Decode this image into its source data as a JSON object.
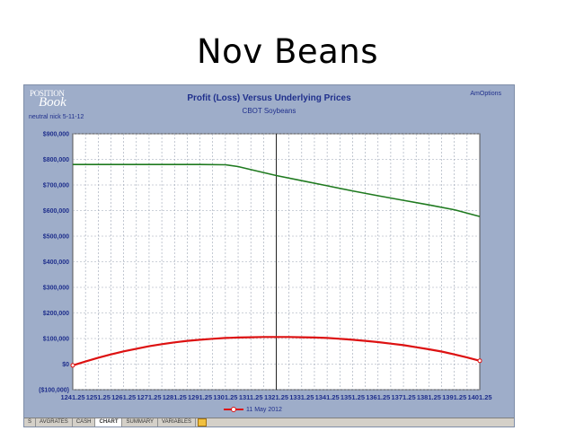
{
  "slide": {
    "title": "Nov Beans"
  },
  "app": {
    "logo_top": "POSITION",
    "logo_bottom": "Book",
    "brand": "AmOptions",
    "scenario_label": "neutral nick 5-11-12"
  },
  "tabs": [
    {
      "label": "S"
    },
    {
      "label": "AVGRATES"
    },
    {
      "label": "CASH"
    },
    {
      "label": "CHART"
    },
    {
      "label": "SUMMARY"
    },
    {
      "label": "VARIABLES"
    }
  ],
  "colors": {
    "upper_line": "#1f7a1f",
    "lower_line": "#dd1111",
    "plot_bg": "#ffffff",
    "frame_bg": "#9eadc9"
  },
  "chart_data": {
    "type": "line",
    "title": "Profit (Loss) Versus Underlying Prices",
    "subtitle": "CBOT Soybeans",
    "x_tick_labels": [
      "1241.25",
      "1251.25",
      "1261.25",
      "1271.25",
      "1281.25",
      "1291.25",
      "1301.25",
      "1311.25",
      "1321.25",
      "1331.25",
      "1341.25",
      "1351.25",
      "1361.25",
      "1371.25",
      "1381.25",
      "1391.25",
      "1401.25"
    ],
    "xlim": [
      1241.25,
      1401.25
    ],
    "ylim": [
      -100000,
      900000
    ],
    "y_tick_values": [
      -100000,
      0,
      100000,
      200000,
      300000,
      400000,
      500000,
      600000,
      700000,
      800000,
      900000
    ],
    "y_tick_labels": [
      "($100,000)",
      "$0",
      "$100,000",
      "$200,000",
      "$300,000",
      "$400,000",
      "$500,000",
      "$600,000",
      "$700,000",
      "$800,000",
      "$900,000"
    ],
    "vertical_marker_x": 1321.25,
    "grid": true,
    "legend_position": "bottom",
    "series": [
      {
        "name": "",
        "color": "#1f7a1f",
        "markers": false,
        "points": [
          [
            1241.25,
            780000
          ],
          [
            1251.25,
            780000
          ],
          [
            1261.25,
            780000
          ],
          [
            1271.25,
            780000
          ],
          [
            1281.25,
            780000
          ],
          [
            1291.25,
            780000
          ],
          [
            1301.25,
            779000
          ],
          [
            1306.25,
            772000
          ],
          [
            1311.25,
            760000
          ],
          [
            1321.25,
            737000
          ],
          [
            1331.25,
            717000
          ],
          [
            1341.25,
            697000
          ],
          [
            1351.25,
            677000
          ],
          [
            1361.25,
            658000
          ],
          [
            1371.25,
            640000
          ],
          [
            1381.25,
            622000
          ],
          [
            1391.25,
            603000
          ],
          [
            1401.25,
            577000
          ]
        ]
      },
      {
        "name": "11 May 2012",
        "color": "#dd1111",
        "markers": true,
        "points": [
          [
            1241.25,
            -5000
          ],
          [
            1246.25,
            10000
          ],
          [
            1251.25,
            25000
          ],
          [
            1256.25,
            38000
          ],
          [
            1261.25,
            50000
          ],
          [
            1266.25,
            60000
          ],
          [
            1271.25,
            70000
          ],
          [
            1276.25,
            78000
          ],
          [
            1281.25,
            85000
          ],
          [
            1286.25,
            91000
          ],
          [
            1291.25,
            95000
          ],
          [
            1296.25,
            99000
          ],
          [
            1301.25,
            102000
          ],
          [
            1306.25,
            104000
          ],
          [
            1311.25,
            105000
          ],
          [
            1316.25,
            106000
          ],
          [
            1321.25,
            106000
          ],
          [
            1326.25,
            106000
          ],
          [
            1331.25,
            105000
          ],
          [
            1336.25,
            104000
          ],
          [
            1341.25,
            102000
          ],
          [
            1346.25,
            99000
          ],
          [
            1351.25,
            95000
          ],
          [
            1356.25,
            91000
          ],
          [
            1361.25,
            86000
          ],
          [
            1366.25,
            80000
          ],
          [
            1371.25,
            74000
          ],
          [
            1376.25,
            66000
          ],
          [
            1381.25,
            58000
          ],
          [
            1386.25,
            49000
          ],
          [
            1391.25,
            38000
          ],
          [
            1396.25,
            26000
          ],
          [
            1401.25,
            13000
          ]
        ]
      }
    ]
  }
}
